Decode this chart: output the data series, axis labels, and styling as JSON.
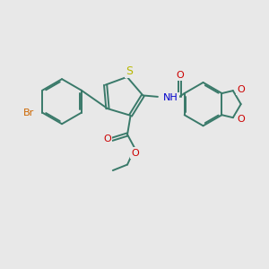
{
  "bg_color": "#e8e8e8",
  "bond_color": "#3a7a6a",
  "S_color": "#b8b800",
  "N_color": "#0000cc",
  "O_color": "#cc0000",
  "Br_color": "#cc6600",
  "line_width": 1.4,
  "dbo": 0.055,
  "fig_w": 3.0,
  "fig_h": 3.0,
  "dpi": 100,
  "xlim": [
    0,
    10
  ],
  "ylim": [
    0,
    10
  ]
}
